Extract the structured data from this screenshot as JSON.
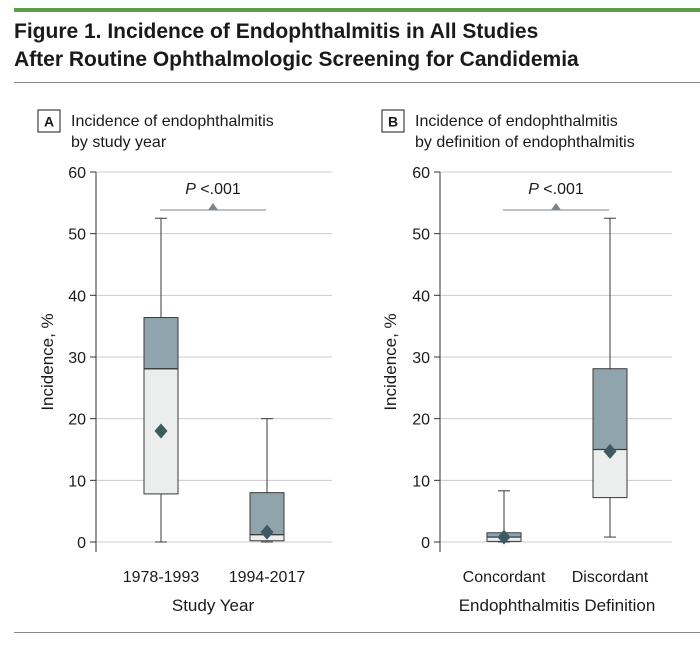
{
  "figure": {
    "title_line1": "Figure 1. Incidence of Endophthalmitis in All Studies",
    "title_line2": "After Routine Ophthalmologic Screening for Candidemia",
    "accent_color": "#5a9e4b"
  },
  "colors": {
    "box_upper": "#8fa4ac",
    "box_lower": "#eceeed",
    "box_stroke": "#3a3a3a",
    "mean_marker": "#3d5961",
    "grid": "#cccccc",
    "annotation": "#7a868b"
  },
  "chart_data": [
    {
      "type": "box",
      "panel_letter": "A",
      "title_line1": "Incidence of endophthalmitis",
      "title_line2": "by study year",
      "xlabel": "Study Year",
      "ylabel": "Incidence, %",
      "ylim": [
        0,
        60
      ],
      "yticks": [
        0,
        10,
        20,
        30,
        40,
        50,
        60
      ],
      "grid": true,
      "categories": [
        "1978-1993",
        "1994-2017"
      ],
      "boxes": [
        {
          "category": "1978-1993",
          "min": 0,
          "q1": 7.8,
          "median": 28.1,
          "q3": 36.4,
          "max": 52.5,
          "mean": 18
        },
        {
          "category": "1994-2017",
          "min": 0,
          "q1": 0.2,
          "median": 1.2,
          "q3": 8.0,
          "max": 20.0,
          "mean": 1.6
        }
      ],
      "annotation": {
        "p_label": "P",
        "p_value": "<.001"
      }
    },
    {
      "type": "box",
      "panel_letter": "B",
      "title_line1": "Incidence of endophthalmitis",
      "title_line2": "by definition of endophthalmitis",
      "xlabel": "Endophthalmitis Definition",
      "ylabel": "Incidence, %",
      "ylim": [
        0,
        60
      ],
      "yticks": [
        0,
        10,
        20,
        30,
        40,
        50,
        60
      ],
      "grid": true,
      "categories": [
        "Concordant",
        "Discordant"
      ],
      "boxes": [
        {
          "category": "Concordant",
          "min": 0,
          "q1": 0.1,
          "median": 0.8,
          "q3": 1.5,
          "max": 8.3,
          "mean": 0.8
        },
        {
          "category": "Discordant",
          "min": 0.8,
          "q1": 7.2,
          "median": 15.0,
          "q3": 28.1,
          "max": 52.5,
          "mean": 14.7
        }
      ],
      "annotation": {
        "p_label": "P",
        "p_value": "<.001"
      }
    }
  ]
}
